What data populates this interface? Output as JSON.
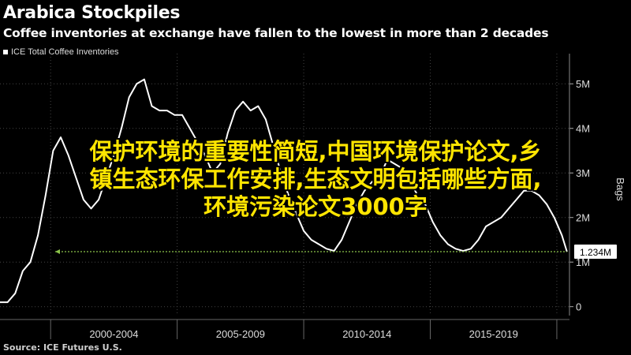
{
  "title": "Arabica Stockpiles",
  "subtitle": "Coffee inventories at exchange have fallen to the lowest in more than 2 decades",
  "source": "Source: ICE Futures U.S.",
  "overlay_lines": [
    "保护环境的重要性简短,中国环境保护论文,乡",
    "镇生态环保工作安排,生态文明包括哪些方面,",
    "环境污染论文3000字"
  ],
  "colors": {
    "background": "#000000",
    "line": "#ffffff",
    "callout": "#8bc34a",
    "overlay_text": "#ffe500"
  },
  "chart_data": {
    "type": "line",
    "title": "Arabica Stockpiles",
    "subtitle": "Coffee inventories at exchange have fallen to the lowest in more than 2 decades",
    "ylabel": "Bags",
    "ylim": [
      -0.2,
      5.5
    ],
    "y_ticks": [
      0,
      1,
      2,
      3,
      4,
      5
    ],
    "y_tick_labels": [
      "0",
      "1M",
      "2M",
      "3M",
      "4M",
      "5M"
    ],
    "x_range": [
      1998.0,
      2020.5
    ],
    "x_ticks": [
      "2000-2004",
      "2005-2009",
      "2010-2014",
      "2015-2019"
    ],
    "legend_position": "top-left",
    "grid": true,
    "last_value_label": "1.234M",
    "last_value": 1.234,
    "series": [
      {
        "name": "ICE Total Coffee Inventories",
        "x": [
          1998.0,
          1998.3,
          1998.6,
          1998.9,
          1999.2,
          1999.5,
          1999.8,
          2000.1,
          2000.4,
          2000.7,
          2001.0,
          2001.3,
          2001.6,
          2001.9,
          2002.2,
          2002.5,
          2002.8,
          2003.1,
          2003.4,
          2003.7,
          2004.0,
          2004.3,
          2004.6,
          2004.9,
          2005.2,
          2005.5,
          2005.8,
          2006.1,
          2006.4,
          2006.7,
          2007.0,
          2007.3,
          2007.6,
          2007.9,
          2008.2,
          2008.5,
          2008.8,
          2009.1,
          2009.4,
          2009.7,
          2010.0,
          2010.3,
          2010.6,
          2010.9,
          2011.2,
          2011.5,
          2011.8,
          2012.1,
          2012.4,
          2012.7,
          2013.0,
          2013.3,
          2013.6,
          2013.9,
          2014.2,
          2014.5,
          2014.8,
          2015.1,
          2015.4,
          2015.7,
          2016.0,
          2016.3,
          2016.6,
          2016.9,
          2017.2,
          2017.5,
          2017.8,
          2018.1,
          2018.4,
          2018.7,
          2019.0,
          2019.3,
          2019.6,
          2019.9,
          2020.2,
          2020.4
        ],
        "values": [
          0.1,
          0.1,
          0.3,
          0.8,
          1.0,
          1.6,
          2.5,
          3.5,
          3.8,
          3.4,
          2.9,
          2.4,
          2.2,
          2.4,
          2.9,
          3.4,
          4.0,
          4.7,
          5.0,
          5.1,
          4.5,
          4.4,
          4.4,
          4.3,
          4.3,
          4.0,
          3.7,
          3.4,
          3.0,
          3.2,
          3.9,
          4.4,
          4.6,
          4.4,
          4.5,
          4.2,
          3.6,
          3.0,
          2.5,
          2.1,
          1.7,
          1.5,
          1.4,
          1.3,
          1.25,
          1.5,
          1.9,
          2.3,
          2.6,
          2.8,
          2.9,
          3.3,
          3.2,
          3.1,
          2.8,
          2.5,
          2.3,
          1.9,
          1.6,
          1.4,
          1.3,
          1.25,
          1.3,
          1.5,
          1.8,
          1.9,
          2.0,
          2.2,
          2.4,
          2.6,
          2.6,
          2.5,
          2.3,
          2.0,
          1.6,
          1.234
        ]
      }
    ]
  }
}
